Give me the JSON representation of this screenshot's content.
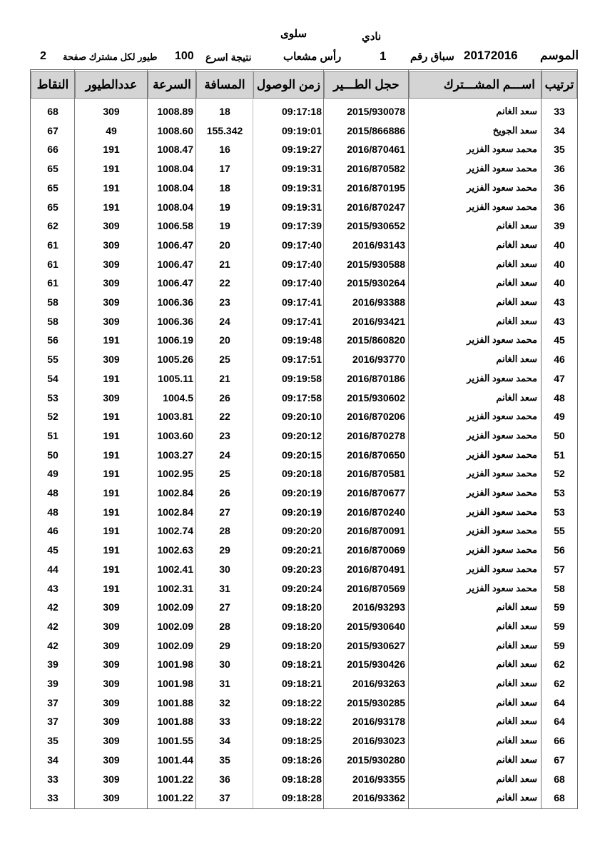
{
  "header": {
    "club_label": "نادي",
    "club_name": "سلوى",
    "season_label": "الموسم",
    "season_value": "20172016",
    "race_label": "سباق رقم",
    "race_value": "1",
    "location": "رأس مشعاب",
    "result_label": "نتيجة اسرع",
    "result_value": "100",
    "per_member_label": "طيور لكل مشترك صفحة",
    "page_value": "2"
  },
  "columns": {
    "rank": "ترتيب",
    "name": "اســـم المشـــترك",
    "ring": "حجل الطـــير",
    "arrival": "زمن الوصول",
    "distance": "المسافة",
    "speed": "السرعة",
    "birds": "عددالطيور",
    "points": "النقاط"
  },
  "rows": [
    [
      "33",
      "سعد الغانم",
      "2015/930078",
      "09:17:18",
      "18",
      "1008.89",
      "309",
      "68"
    ],
    [
      "34",
      "سعد الجويخ",
      "2015/866886",
      "09:19:01",
      "155.342",
      "1008.60",
      "49",
      "67"
    ],
    [
      "35",
      "محمد سعود الفزير",
      "2016/870461",
      "09:19:27",
      "16",
      "1008.47",
      "191",
      "66"
    ],
    [
      "36",
      "محمد سعود الفزير",
      "2016/870582",
      "09:19:31",
      "17",
      "1008.04",
      "191",
      "65"
    ],
    [
      "36",
      "محمد سعود الفزير",
      "2016/870195",
      "09:19:31",
      "18",
      "1008.04",
      "191",
      "65"
    ],
    [
      "36",
      "محمد سعود الفزير",
      "2016/870247",
      "09:19:31",
      "19",
      "1008.04",
      "191",
      "65"
    ],
    [
      "39",
      "سعد الغانم",
      "2015/930652",
      "09:17:39",
      "19",
      "1006.58",
      "309",
      "62"
    ],
    [
      "40",
      "سعد الغانم",
      "2016/93143",
      "09:17:40",
      "20",
      "1006.47",
      "309",
      "61"
    ],
    [
      "40",
      "سعد الغانم",
      "2015/930588",
      "09:17:40",
      "21",
      "1006.47",
      "309",
      "61"
    ],
    [
      "40",
      "سعد الغانم",
      "2015/930264",
      "09:17:40",
      "22",
      "1006.47",
      "309",
      "61"
    ],
    [
      "43",
      "سعد الغانم",
      "2016/93388",
      "09:17:41",
      "23",
      "1006.36",
      "309",
      "58"
    ],
    [
      "43",
      "سعد الغانم",
      "2016/93421",
      "09:17:41",
      "24",
      "1006.36",
      "309",
      "58"
    ],
    [
      "45",
      "محمد سعود الفزير",
      "2015/860820",
      "09:19:48",
      "20",
      "1006.19",
      "191",
      "56"
    ],
    [
      "46",
      "سعد الغانم",
      "2016/93770",
      "09:17:51",
      "25",
      "1005.26",
      "309",
      "55"
    ],
    [
      "47",
      "محمد سعود الفزير",
      "2016/870186",
      "09:19:58",
      "21",
      "1005.11",
      "191",
      "54"
    ],
    [
      "48",
      "سعد الغانم",
      "2015/930602",
      "09:17:58",
      "26",
      "1004.5",
      "309",
      "53"
    ],
    [
      "49",
      "محمد سعود الفزير",
      "2016/870206",
      "09:20:10",
      "22",
      "1003.81",
      "191",
      "52"
    ],
    [
      "50",
      "محمد سعود الفزير",
      "2016/870278",
      "09:20:12",
      "23",
      "1003.60",
      "191",
      "51"
    ],
    [
      "51",
      "محمد سعود الفزير",
      "2016/870650",
      "09:20:15",
      "24",
      "1003.27",
      "191",
      "50"
    ],
    [
      "52",
      "محمد سعود الفزير",
      "2016/870581",
      "09:20:18",
      "25",
      "1002.95",
      "191",
      "49"
    ],
    [
      "53",
      "محمد سعود الفزير",
      "2016/870677",
      "09:20:19",
      "26",
      "1002.84",
      "191",
      "48"
    ],
    [
      "53",
      "محمد سعود الفزير",
      "2016/870240",
      "09:20:19",
      "27",
      "1002.84",
      "191",
      "48"
    ],
    [
      "55",
      "محمد سعود الفزير",
      "2016/870091",
      "09:20:20",
      "28",
      "1002.74",
      "191",
      "46"
    ],
    [
      "56",
      "محمد سعود الفزير",
      "2016/870069",
      "09:20:21",
      "29",
      "1002.63",
      "191",
      "45"
    ],
    [
      "57",
      "محمد سعود الفزير",
      "2016/870491",
      "09:20:23",
      "30",
      "1002.41",
      "191",
      "44"
    ],
    [
      "58",
      "محمد سعود الفزير",
      "2016/870569",
      "09:20:24",
      "31",
      "1002.31",
      "191",
      "43"
    ],
    [
      "59",
      "سعد الغانم",
      "2016/93293",
      "09:18:20",
      "27",
      "1002.09",
      "309",
      "42"
    ],
    [
      "59",
      "سعد الغانم",
      "2015/930640",
      "09:18:20",
      "28",
      "1002.09",
      "309",
      "42"
    ],
    [
      "59",
      "سعد الغانم",
      "2015/930627",
      "09:18:20",
      "29",
      "1002.09",
      "309",
      "42"
    ],
    [
      "62",
      "سعد الغانم",
      "2015/930426",
      "09:18:21",
      "30",
      "1001.98",
      "309",
      "39"
    ],
    [
      "62",
      "سعد الغانم",
      "2016/93263",
      "09:18:21",
      "31",
      "1001.98",
      "309",
      "39"
    ],
    [
      "64",
      "سعد الغانم",
      "2015/930285",
      "09:18:22",
      "32",
      "1001.88",
      "309",
      "37"
    ],
    [
      "64",
      "سعد الغانم",
      "2016/93178",
      "09:18:22",
      "33",
      "1001.88",
      "309",
      "37"
    ],
    [
      "66",
      "سعد الغانم",
      "2016/93023",
      "09:18:25",
      "34",
      "1001.55",
      "309",
      "35"
    ],
    [
      "67",
      "سعد الغانم",
      "2015/930280",
      "09:18:26",
      "35",
      "1001.44",
      "309",
      "34"
    ],
    [
      "68",
      "سعد الغانم",
      "2016/93355",
      "09:18:28",
      "36",
      "1001.22",
      "309",
      "33"
    ],
    [
      "68",
      "سعد الغانم",
      "2016/93362",
      "09:18:28",
      "37",
      "1001.22",
      "309",
      "33"
    ]
  ]
}
